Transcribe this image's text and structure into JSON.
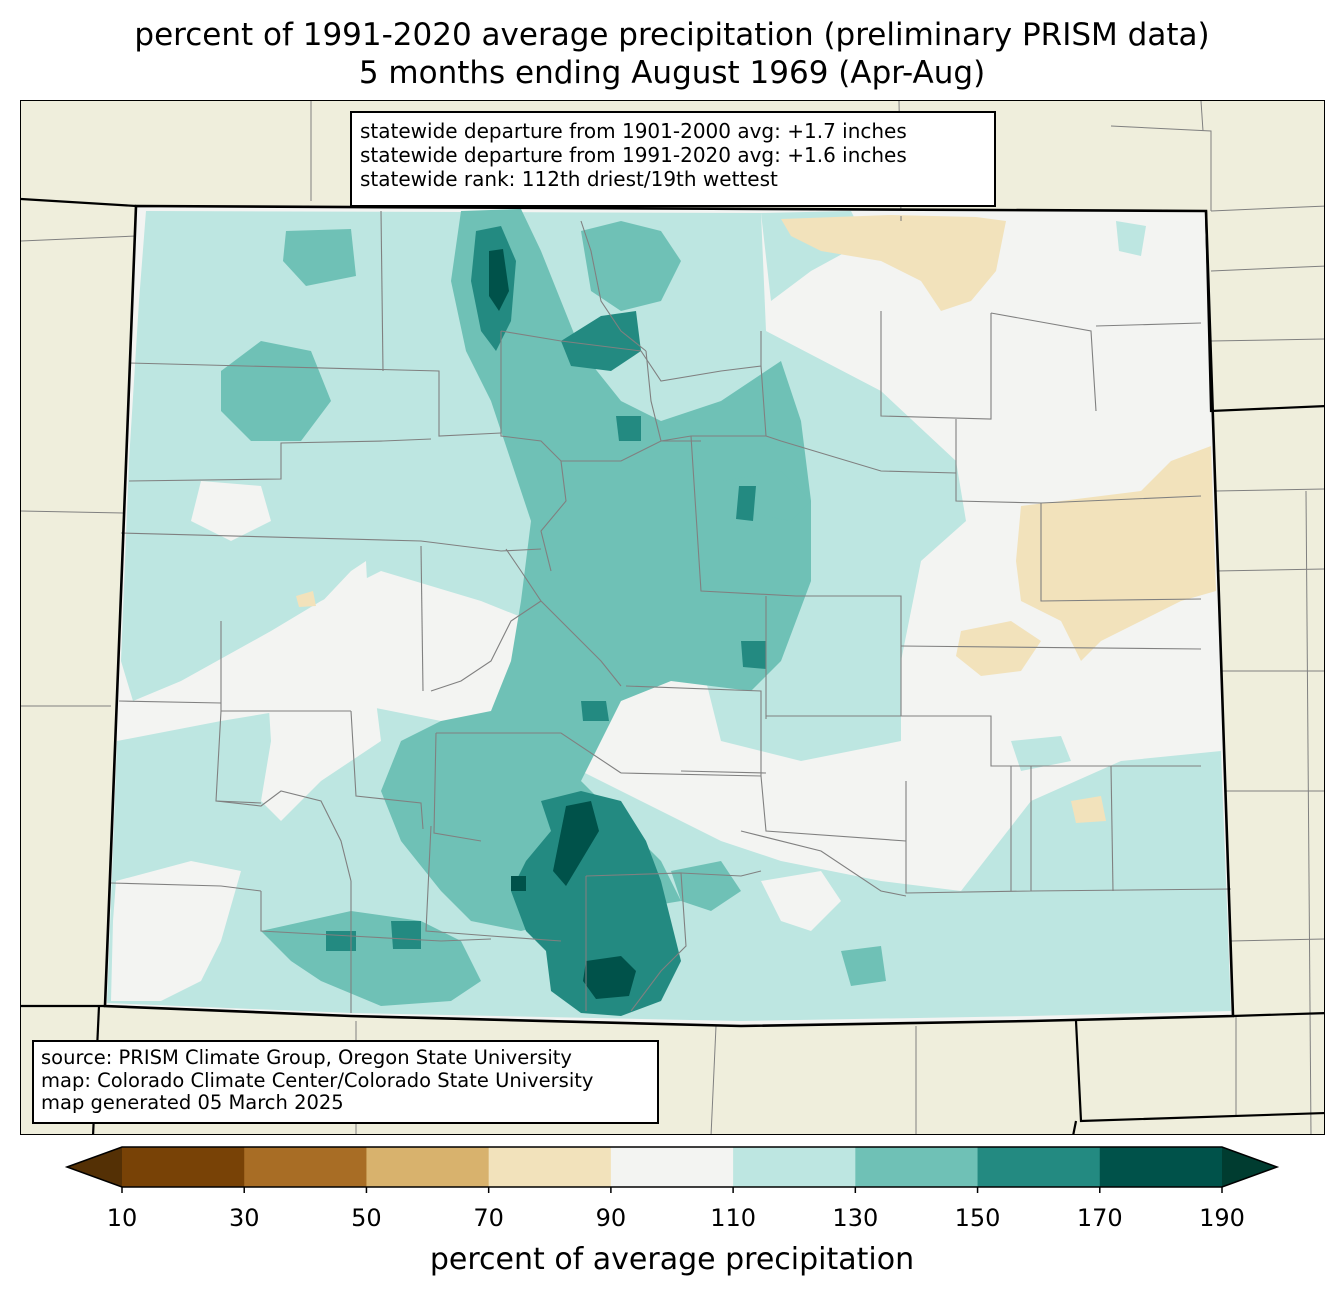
{
  "title": {
    "line1": "percent of 1991-2020 average precipitation (preliminary PRISM data)",
    "line2": "5 months ending August 1969 (Apr-Aug)"
  },
  "stats": {
    "line1": "statewide departure from 1901-2000 avg: +1.7 inches",
    "line2": "statewide departure from 1991-2020 avg: +1.6 inches",
    "line3": "statewide rank: 112th driest/19th wettest"
  },
  "source": {
    "line1": "source: PRISM Climate Group, Oregon State University",
    "line2": "map: Colorado Climate Center/Colorado State University",
    "line3": "map generated 05 March 2025"
  },
  "colorbar": {
    "label": "percent of average precipitation",
    "ticks": [
      "10",
      "30",
      "50",
      "70",
      "90",
      "110",
      "130",
      "150",
      "170",
      "190"
    ],
    "colors": [
      "#543005",
      "#784206",
      "#a86d25",
      "#d8b26d",
      "#f2e2bb",
      "#f3f4f2",
      "#bde6e1",
      "#6fc1b6",
      "#238a81",
      "#00524a",
      "#003c30"
    ]
  },
  "map_colors": {
    "background": "#efeedc",
    "border": "#000000",
    "county_lines": "#808080"
  }
}
